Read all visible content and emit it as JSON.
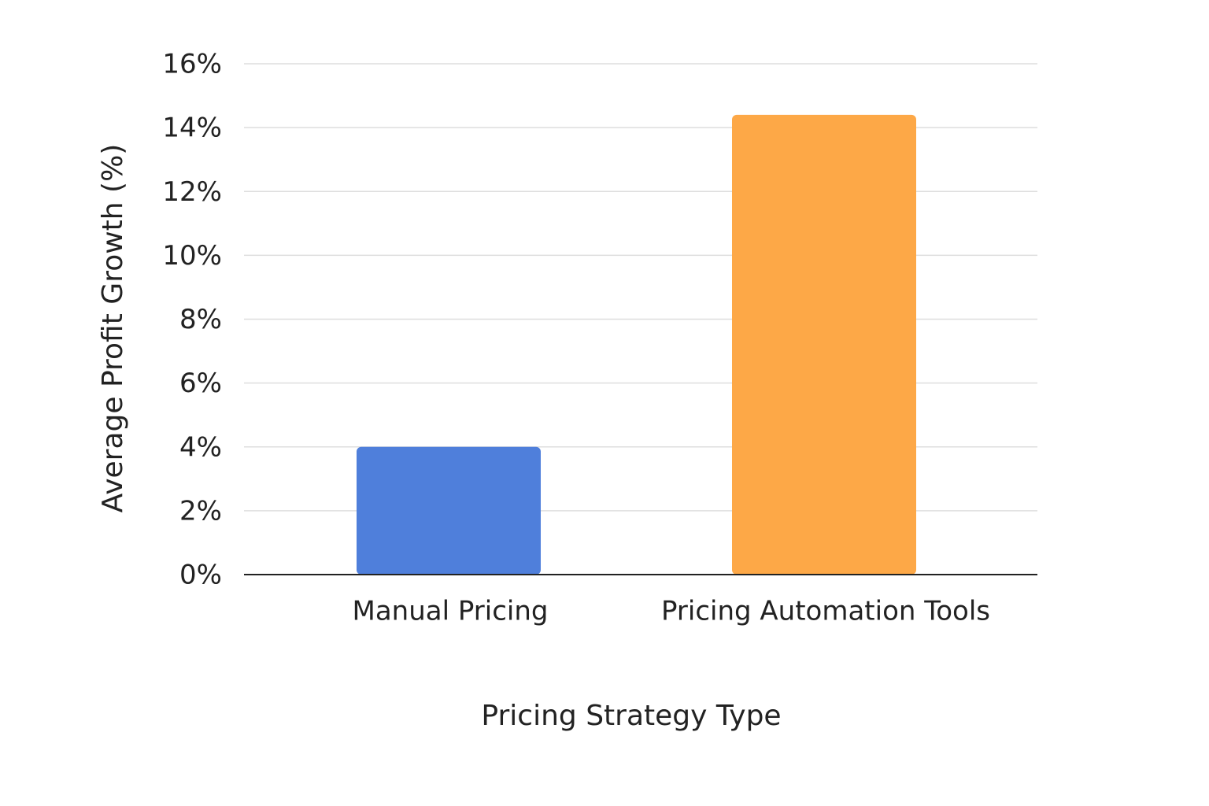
{
  "chart_data": {
    "type": "bar",
    "x_label": "Pricing Strategy Type",
    "y_label": "Average Profit Growth (%)",
    "categories": [
      "Manual Pricing",
      "Pricing Automation Tools"
    ],
    "values": [
      4,
      14.4
    ],
    "colors": [
      "#4f7fdb",
      "#fda847"
    ],
    "ylim": [
      0,
      16
    ],
    "yticks": [
      {
        "value": 0,
        "label": "0%"
      },
      {
        "value": 2,
        "label": "2%"
      },
      {
        "value": 4,
        "label": "4%"
      },
      {
        "value": 6,
        "label": "6%"
      },
      {
        "value": 8,
        "label": "8%"
      },
      {
        "value": 10,
        "label": "10%"
      },
      {
        "value": 12,
        "label": "12%"
      },
      {
        "value": 14,
        "label": "14%"
      },
      {
        "value": 16,
        "label": "16%"
      }
    ],
    "grid": true
  }
}
